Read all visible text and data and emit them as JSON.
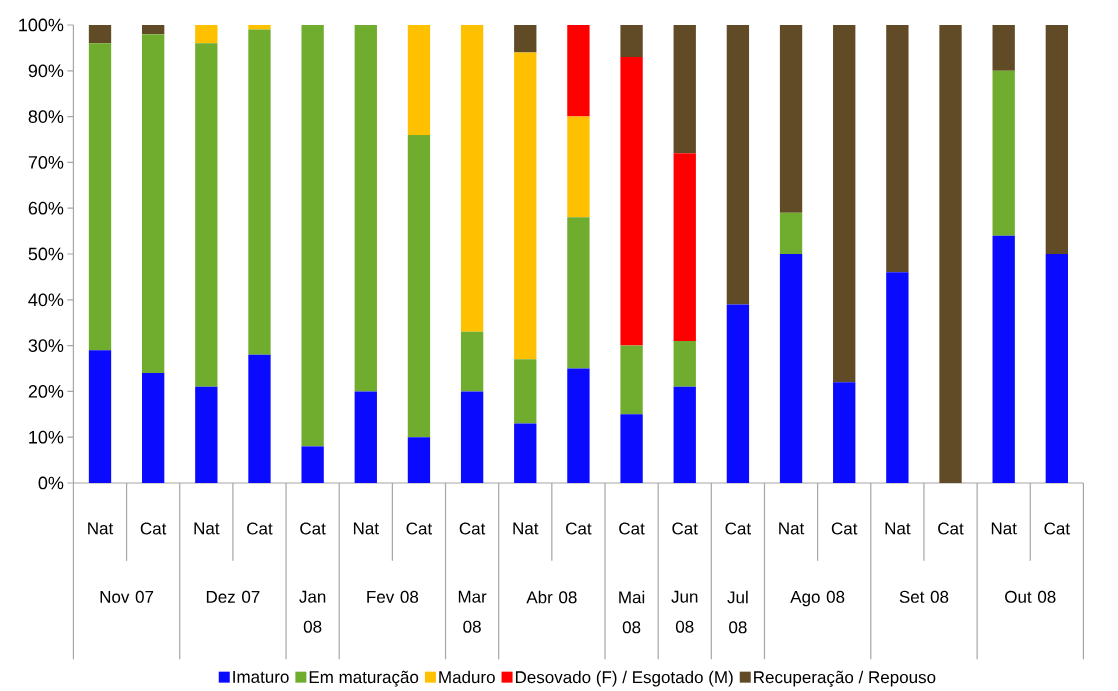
{
  "chart_data": {
    "type": "bar",
    "stacked": true,
    "legend": "bottom",
    "categories": [
      "Nat",
      "Cat",
      "Nat",
      "Cat",
      "Cat",
      "Nat",
      "Cat",
      "Cat",
      "Nat",
      "Cat",
      "Cat",
      "Cat",
      "Cat",
      "Nat",
      "Cat",
      "Nat",
      "Cat",
      "Nat",
      "Cat"
    ],
    "series": [
      {
        "name": "Imaturo",
        "color": "#0a0aff",
        "values": [
          29,
          24,
          21,
          28,
          8,
          20,
          10,
          20,
          13,
          25,
          15,
          21,
          39,
          50,
          22,
          46,
          0,
          54,
          50
        ]
      },
      {
        "name": "Em maturação",
        "color": "#70ad2f",
        "values": [
          67,
          74,
          75,
          71,
          92,
          80,
          66,
          13,
          14,
          33,
          15,
          10,
          0,
          9,
          0,
          0,
          0,
          36,
          0
        ]
      },
      {
        "name": "Maduro",
        "color": "#ffc000",
        "values": [
          0,
          0,
          4,
          1,
          0,
          0,
          24,
          67,
          67,
          22,
          0,
          0,
          0,
          0,
          0,
          0,
          0,
          0,
          0
        ]
      },
      {
        "name": "Desovado (F) / Esgotado (M)",
        "color": "#ff0000",
        "values": [
          0,
          0,
          0,
          0,
          0,
          0,
          0,
          0,
          0,
          20,
          63,
          41,
          0,
          0,
          0,
          0,
          0,
          0,
          0
        ]
      },
      {
        "name": "Recuperação / Repouso",
        "color": "#614a26",
        "values": [
          4,
          2,
          0,
          0,
          0,
          0,
          0,
          0,
          6,
          0,
          7,
          28,
          61,
          41,
          78,
          54,
          100,
          10,
          50
        ]
      }
    ],
    "ylim": [
      0,
      100
    ],
    "yticks": [
      {
        "value": 0,
        "label": "0%"
      },
      {
        "value": 10,
        "label": "10%"
      },
      {
        "value": 20,
        "label": "20%"
      },
      {
        "value": 30,
        "label": "30%"
      },
      {
        "value": 40,
        "label": "40%"
      },
      {
        "value": 50,
        "label": "50%"
      },
      {
        "value": 60,
        "label": "60%"
      },
      {
        "value": 70,
        "label": "70%"
      },
      {
        "value": 80,
        "label": "80%"
      },
      {
        "value": 90,
        "label": "90%"
      },
      {
        "value": 100,
        "label": "100%"
      }
    ],
    "annotations": [
      "Nov 07",
      "Dez 07",
      "Jan 08",
      "Fev 08",
      "Mar 08",
      "Abr 08",
      "Mai 08",
      "Jun 08",
      "Jul 08",
      "Ago 08",
      "Set 08",
      "Out 08"
    ]
  }
}
